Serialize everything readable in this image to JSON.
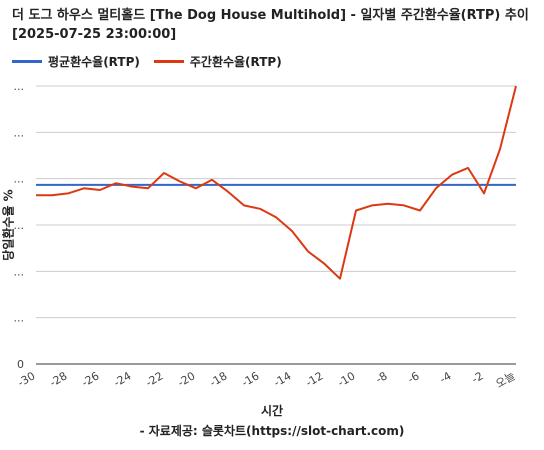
{
  "chart_data": {
    "type": "line",
    "title": "더 도그 하우스 멀티홀드 [The Dog House Multihold] - 일자별 주간환수율(RTP) 추이",
    "subtitle": "[2025-07-25 23:00:00]",
    "xlabel": "시간",
    "ylabel": "당일환수율 %",
    "source": "- 자료제공: 슬롯차트(https://slot-chart.com)",
    "x": [
      -30,
      -29,
      -28,
      -27,
      -26,
      -25,
      -24,
      -23,
      -22,
      -21,
      -20,
      -19,
      -18,
      -17,
      -16,
      -15,
      -14,
      -13,
      -12,
      -11,
      -10,
      -9,
      -8,
      -7,
      -6,
      -5,
      -4,
      -3,
      -2,
      -1,
      0
    ],
    "x_tick_labels": [
      "-30",
      "-28",
      "-26",
      "-24",
      "-22",
      "-20",
      "-18",
      "-16",
      "-14",
      "-12",
      "-10",
      "-8",
      "-6",
      "-4",
      "-2",
      "오늘"
    ],
    "y_tick_labels": [
      "0",
      "...",
      "...",
      "...",
      "...",
      "...",
      "..."
    ],
    "series": [
      {
        "name": "평균환수율(RTP)",
        "color": "#3366cc",
        "values": [
          96.5,
          96.5,
          96.5,
          96.5,
          96.5,
          96.5,
          96.5,
          96.5,
          96.5,
          96.5,
          96.5,
          96.5,
          96.5,
          96.5,
          96.5,
          96.5,
          96.5,
          96.5,
          96.5,
          96.5,
          96.5,
          96.5,
          96.5,
          96.5,
          96.5,
          96.5,
          96.5,
          96.5,
          96.5,
          96.5,
          96.5
        ]
      },
      {
        "name": "주간환수율(RTP)",
        "color": "#dc3912",
        "values": [
          95.9,
          95.9,
          96.0,
          96.3,
          96.2,
          96.6,
          96.4,
          96.3,
          97.2,
          96.7,
          96.3,
          96.8,
          96.1,
          95.3,
          95.1,
          94.6,
          93.8,
          92.6,
          91.9,
          91.0,
          95.0,
          95.3,
          95.4,
          95.3,
          95.0,
          96.3,
          97.1,
          97.5,
          96.0,
          98.6,
          102.3
        ]
      }
    ],
    "ylim": [
      86.0,
      102.3
    ],
    "grid": true,
    "legend_position": "top-left"
  }
}
